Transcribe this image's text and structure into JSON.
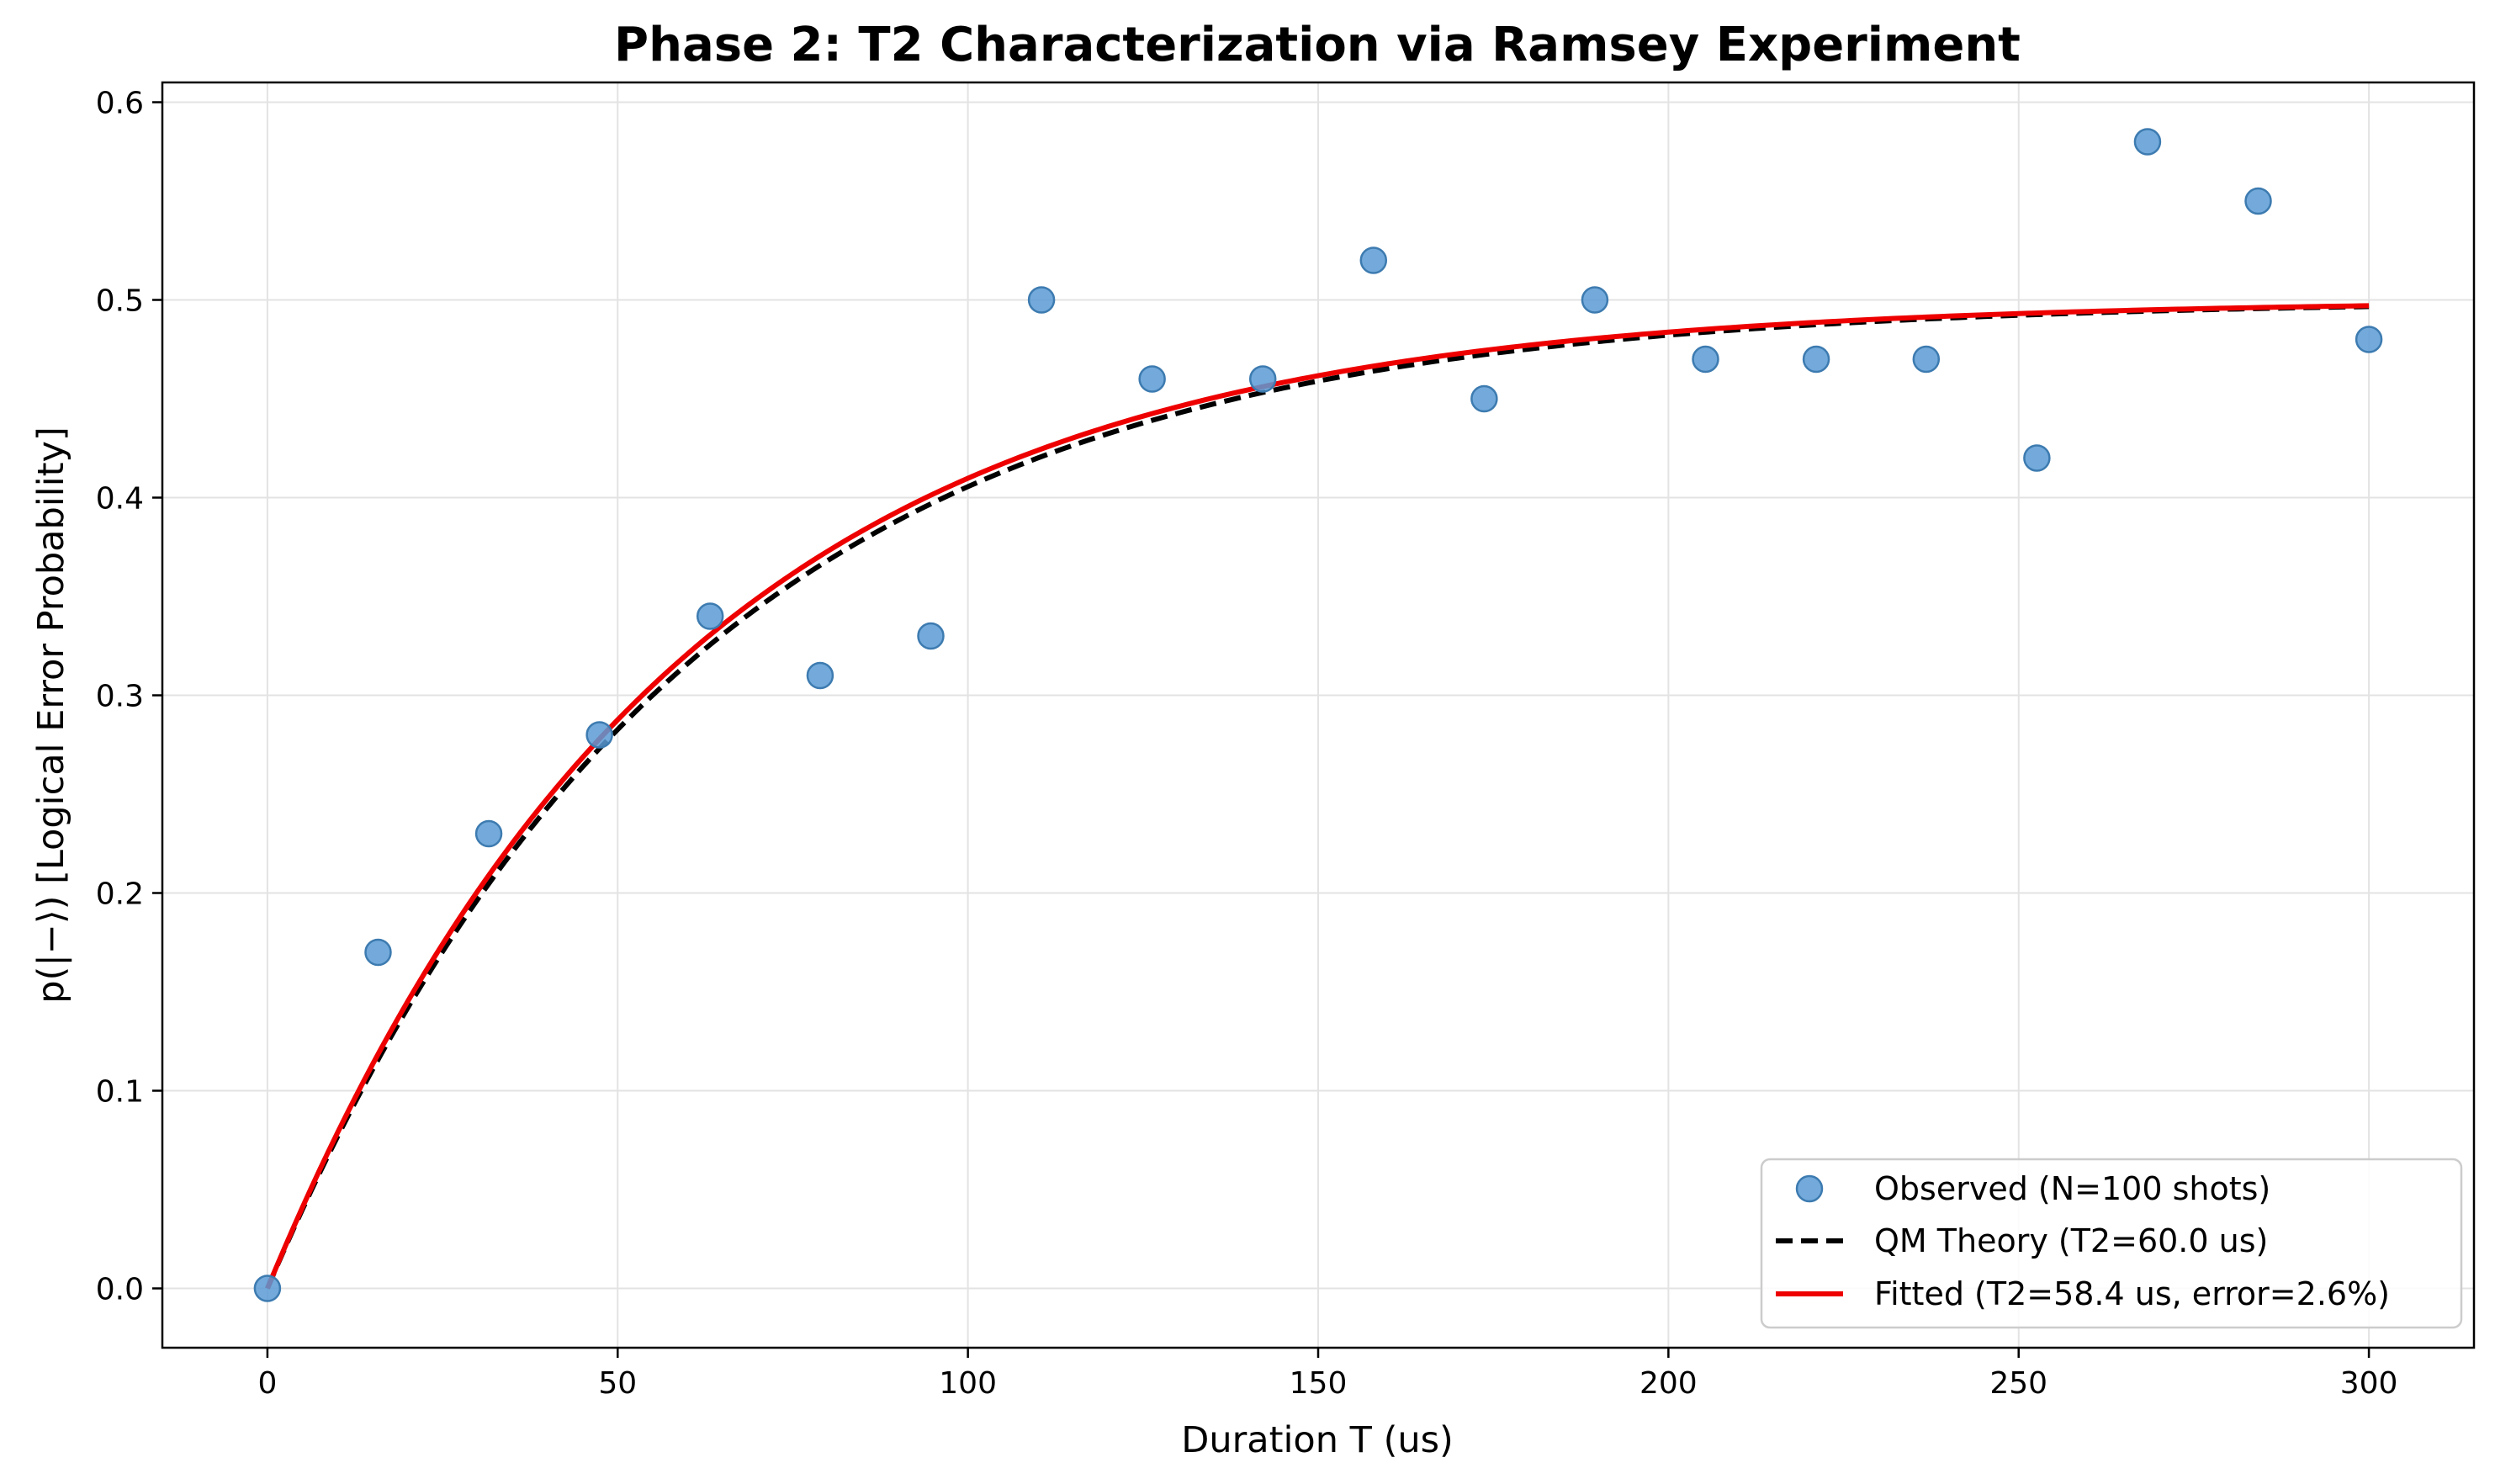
{
  "chart_data": {
    "type": "scatter",
    "title": "Phase 2: T2 Characterization via Ramsey Experiment",
    "xlabel": "Duration T (us)",
    "ylabel": "p(|−⟩) [Logical Error Probability]",
    "xlim": [
      -15,
      315
    ],
    "ylim": [
      -0.03,
      0.61
    ],
    "xticks": [
      0,
      50,
      100,
      150,
      200,
      250,
      300
    ],
    "yticks": [
      0.0,
      0.1,
      0.2,
      0.3,
      0.4,
      0.5,
      0.6
    ],
    "xtick_labels": [
      "0",
      "50",
      "100",
      "150",
      "200",
      "250",
      "300"
    ],
    "ytick_labels": [
      "0.0",
      "0.1",
      "0.2",
      "0.3",
      "0.4",
      "0.5",
      "0.6"
    ],
    "grid": true,
    "legend_position": "bottom-right",
    "series": [
      {
        "name": "Observed (N=100 shots)",
        "kind": "scatter",
        "color": "#5b9bd5",
        "x": [
          0,
          15.8,
          31.6,
          47.4,
          63.2,
          78.9,
          94.7,
          110.5,
          126.3,
          142.1,
          157.9,
          173.7,
          189.5,
          205.3,
          221.1,
          236.8,
          252.6,
          268.4,
          284.2,
          300
        ],
        "y": [
          0.0,
          0.17,
          0.23,
          0.28,
          0.34,
          0.31,
          0.33,
          0.5,
          0.46,
          0.46,
          0.52,
          0.45,
          0.5,
          0.47,
          0.47,
          0.47,
          0.42,
          0.58,
          0.55,
          0.48
        ]
      },
      {
        "name": "QM Theory (T2=60.0 us)",
        "kind": "line",
        "style": "dashed",
        "color": "#000000",
        "model": "0.5*(1-exp(-T/T2))",
        "T2": 60.0,
        "amplitude": 0.5
      },
      {
        "name": "Fitted (T2=58.4 us, error=2.6%)",
        "kind": "line",
        "style": "solid",
        "color": "#ee0000",
        "model": "0.5*(1-exp(-T/T2))",
        "T2": 58.4,
        "amplitude": 0.5
      }
    ]
  }
}
